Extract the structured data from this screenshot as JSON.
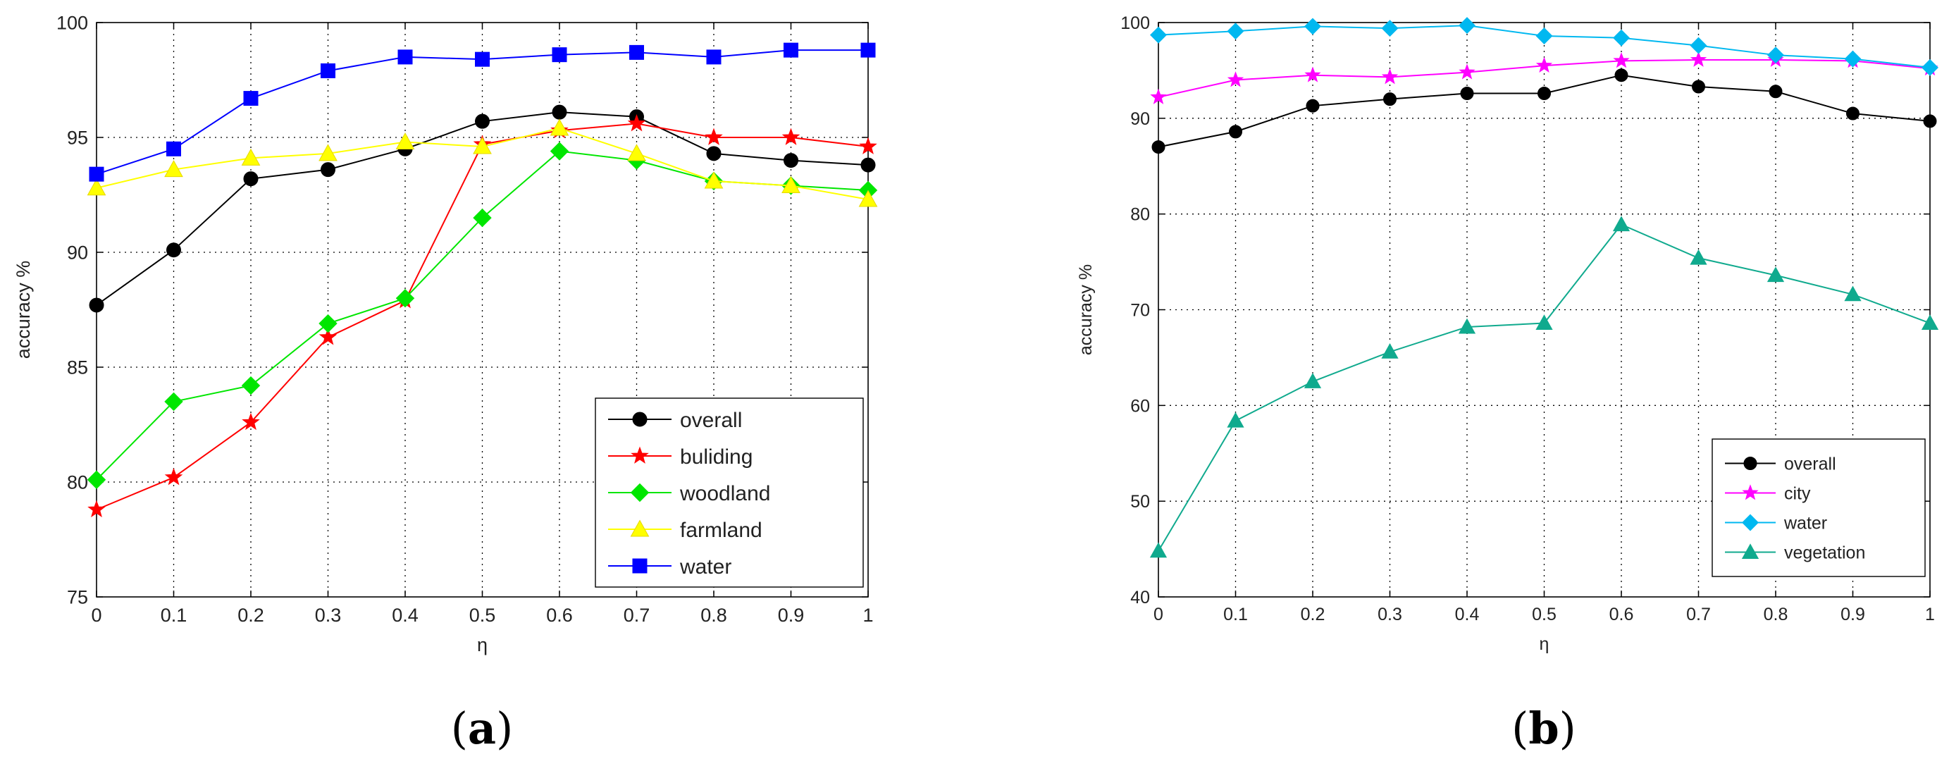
{
  "chart_data": [
    {
      "id": "a",
      "panel_label": "a",
      "type": "line",
      "xlabel": "η",
      "ylabel": "accuracy %",
      "x": [
        0,
        0.1,
        0.2,
        0.3,
        0.4,
        0.5,
        0.6,
        0.7,
        0.8,
        0.9,
        1
      ],
      "x_tick_labels": [
        "0",
        "0.1",
        "0.2",
        "0.3",
        "0.4",
        "0.5",
        "0.6",
        "0.7",
        "0.8",
        "0.9",
        "1"
      ],
      "xlim": [
        0,
        1
      ],
      "ylim": [
        75,
        100
      ],
      "y_ticks": [
        75,
        80,
        85,
        90,
        95,
        100
      ],
      "grid": true,
      "legend_position": "bottom-right",
      "series": [
        {
          "name": "overall",
          "color": "#000000",
          "marker": "circle",
          "values": [
            87.7,
            90.1,
            93.2,
            93.6,
            94.5,
            95.7,
            96.1,
            95.9,
            94.3,
            94.0,
            93.8
          ]
        },
        {
          "name": "buliding",
          "color": "#ff0000",
          "marker": "star",
          "values": [
            78.8,
            80.2,
            82.6,
            86.3,
            87.9,
            94.7,
            95.3,
            95.6,
            95.0,
            95.0,
            94.6
          ]
        },
        {
          "name": "woodland",
          "color": "#00e600",
          "marker": "diamond",
          "values": [
            80.1,
            83.5,
            84.2,
            86.9,
            88.0,
            91.5,
            94.4,
            94.0,
            93.1,
            92.9,
            92.7
          ]
        },
        {
          "name": "farmland",
          "color": "#ffff00",
          "marker": "triangle",
          "values": [
            92.8,
            93.6,
            94.1,
            94.3,
            94.8,
            94.6,
            95.4,
            94.3,
            93.1,
            92.9,
            92.3
          ]
        },
        {
          "name": "water",
          "color": "#0000ff",
          "marker": "square",
          "values": [
            93.4,
            94.5,
            96.7,
            97.9,
            98.5,
            98.4,
            98.6,
            98.7,
            98.5,
            98.8,
            98.8
          ]
        }
      ]
    },
    {
      "id": "b",
      "panel_label": "b",
      "type": "line",
      "xlabel": "η",
      "ylabel": "accuracy %",
      "x": [
        0,
        0.1,
        0.2,
        0.3,
        0.4,
        0.5,
        0.6,
        0.7,
        0.8,
        0.9,
        1
      ],
      "x_tick_labels": [
        "0",
        "0.1",
        "0.2",
        "0.3",
        "0.4",
        "0.5",
        "0.6",
        "0.7",
        "0.8",
        "0.9",
        "1"
      ],
      "xlim": [
        0,
        1
      ],
      "ylim": [
        40,
        100
      ],
      "y_ticks": [
        40,
        50,
        60,
        70,
        80,
        90,
        100
      ],
      "grid": true,
      "legend_position": "bottom-right",
      "series": [
        {
          "name": "overall",
          "color": "#000000",
          "marker": "circle",
          "values": [
            87.0,
            88.6,
            91.3,
            92.0,
            92.6,
            92.6,
            94.5,
            93.3,
            92.8,
            90.5,
            89.7
          ]
        },
        {
          "name": "city",
          "color": "#ff00ff",
          "marker": "star",
          "values": [
            92.2,
            94.0,
            94.5,
            94.3,
            94.8,
            95.5,
            96.0,
            96.1,
            96.1,
            96.0,
            95.2
          ]
        },
        {
          "name": "water",
          "color": "#00b8f0",
          "marker": "diamond",
          "values": [
            98.7,
            99.1,
            99.6,
            99.4,
            99.7,
            98.6,
            98.4,
            97.6,
            96.6,
            96.2,
            95.3
          ]
        },
        {
          "name": "vegetation",
          "color": "#10aa8e",
          "marker": "triangle",
          "values": [
            44.8,
            58.4,
            62.5,
            65.6,
            68.2,
            68.6,
            78.9,
            75.4,
            73.6,
            71.6,
            68.6
          ]
        }
      ]
    }
  ]
}
